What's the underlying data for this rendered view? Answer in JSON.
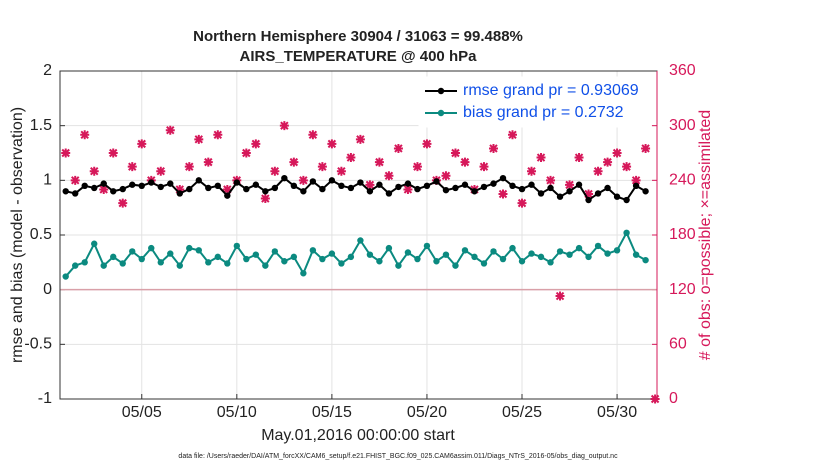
{
  "chart_data": {
    "type": "line",
    "title": "Northern Hemisphere 30904 / 31063 = 99.488%",
    "subtitle": "AIRS_TEMPERATURE @ 400 hPa",
    "xlabel": "May.01,2016 00:00:00 start",
    "ylabel": "rmse and bias (model - observation)",
    "y2label": "# of obs: o=possible; ×=assimilated",
    "footnote": "data file: /Users/raeder/DAI/ATM_forcXX/CAM6_setup/f.e21.FHIST_BGC.f09_025.CAM6assim.011/Diags_NTrS_2016-05/obs_diag_output.nc",
    "x": [
      1,
      1.5,
      2,
      2.5,
      3,
      3.5,
      4,
      4.5,
      5,
      5.5,
      6,
      6.5,
      7,
      7.5,
      8,
      8.5,
      9,
      9.5,
      10,
      10.5,
      11,
      11.5,
      12,
      12.5,
      13,
      13.5,
      14,
      14.5,
      15,
      15.5,
      16,
      16.5,
      17,
      17.5,
      18,
      18.5,
      19,
      19.5,
      20,
      20.5,
      21,
      21.5,
      22,
      22.5,
      23,
      23.5,
      24,
      24.5,
      25,
      25.5,
      26,
      26.5,
      27,
      27.5,
      28,
      28.5,
      29,
      29.5,
      30,
      30.5,
      31,
      31.5,
      32
    ],
    "xlim": [
      0.7,
      32.1
    ],
    "xticks": [
      {
        "value": 5,
        "label": "05/05"
      },
      {
        "value": 10,
        "label": "05/10"
      },
      {
        "value": 15,
        "label": "05/15"
      },
      {
        "value": 20,
        "label": "05/20"
      },
      {
        "value": 25,
        "label": "05/25"
      },
      {
        "value": 30,
        "label": "05/30"
      }
    ],
    "ylim": [
      -1,
      2
    ],
    "yticks": [
      -1,
      -0.5,
      0,
      0.5,
      1,
      1.5,
      2
    ],
    "y2lim": [
      0,
      360
    ],
    "y2ticks": [
      0,
      60,
      120,
      180,
      240,
      300,
      360
    ],
    "hline": 0,
    "grid": true,
    "legend": "upper right",
    "legend_color": "#1050e8",
    "series": [
      {
        "name": "rmse grand pr = 0.93069",
        "color": "#000000",
        "marker": "circle",
        "values": [
          0.9,
          0.88,
          0.95,
          0.93,
          0.97,
          0.9,
          0.92,
          0.96,
          0.95,
          0.98,
          0.94,
          0.97,
          0.88,
          0.92,
          1.0,
          0.93,
          0.95,
          0.86,
          0.98,
          0.92,
          0.96,
          0.9,
          0.93,
          1.02,
          0.95,
          0.9,
          0.99,
          0.92,
          1.0,
          0.95,
          0.93,
          0.98,
          0.9,
          0.96,
          0.88,
          0.94,
          0.97,
          0.92,
          0.95,
          0.99,
          0.91,
          0.93,
          0.96,
          0.9,
          0.94,
          0.97,
          1.02,
          0.95,
          0.92,
          0.96,
          0.88,
          0.93,
          0.85,
          0.9,
          0.96,
          0.82,
          0.88,
          0.93,
          0.85,
          0.82,
          0.95,
          0.9,
          null
        ]
      },
      {
        "name": "bias grand pr = 0.2732",
        "color": "#0b8a80",
        "marker": "circle",
        "values": [
          0.12,
          0.22,
          0.25,
          0.42,
          0.22,
          0.3,
          0.24,
          0.35,
          0.28,
          0.38,
          0.25,
          0.33,
          0.22,
          0.38,
          0.36,
          0.25,
          0.3,
          0.24,
          0.4,
          0.28,
          0.32,
          0.22,
          0.35,
          0.26,
          0.3,
          0.15,
          0.36,
          0.28,
          0.33,
          0.24,
          0.3,
          0.45,
          0.32,
          0.26,
          0.38,
          0.22,
          0.34,
          0.28,
          0.4,
          0.26,
          0.32,
          0.22,
          0.36,
          0.3,
          0.24,
          0.35,
          0.28,
          0.38,
          0.26,
          0.33,
          0.3,
          0.25,
          0.35,
          0.32,
          0.38,
          0.3,
          0.4,
          0.33,
          0.36,
          0.52,
          0.32,
          0.27,
          null
        ]
      },
      {
        "color": "#d6185a",
        "marker": "cross",
        "axis": "y2",
        "values": [
          270,
          240,
          290,
          250,
          230,
          270,
          215,
          255,
          280,
          240,
          250,
          295,
          230,
          255,
          285,
          260,
          290,
          230,
          240,
          270,
          280,
          220,
          250,
          300,
          260,
          240,
          290,
          255,
          280,
          250,
          265,
          285,
          235,
          260,
          245,
          275,
          230,
          255,
          280,
          240,
          245,
          270,
          260,
          230,
          255,
          275,
          225,
          290,
          215,
          250,
          265,
          240,
          113,
          235,
          265,
          225,
          250,
          260,
          270,
          255,
          240,
          275,
          0
        ]
      }
    ]
  }
}
